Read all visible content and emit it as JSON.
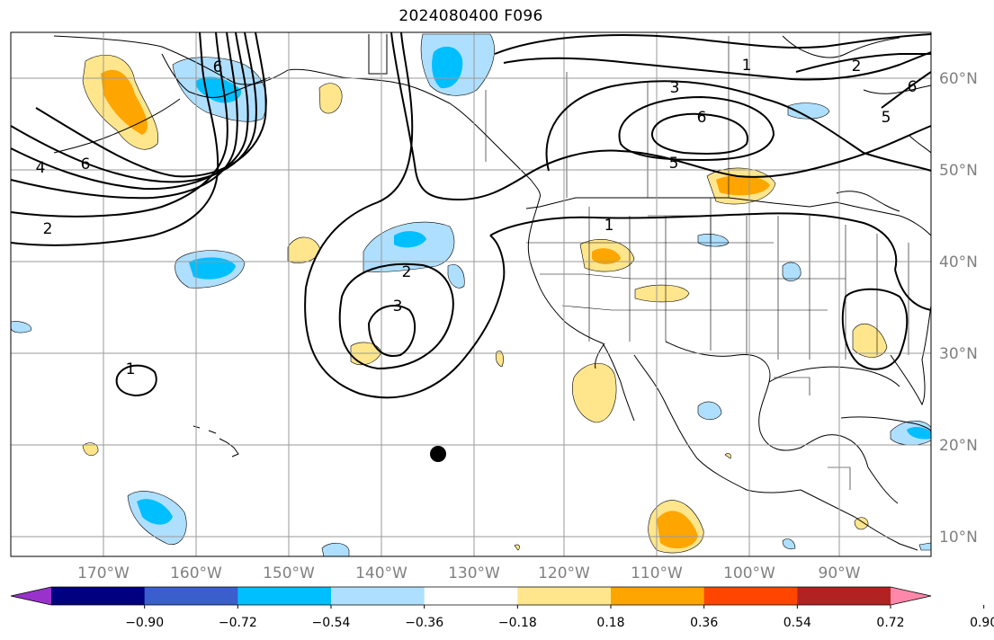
{
  "title": "2024080400 F096",
  "map": {
    "lon_labels": [
      "170°W",
      "160°W",
      "150°W",
      "140°W",
      "130°W",
      "120°W",
      "110°W",
      "100°W",
      "90°W"
    ],
    "lat_labels": [
      "60°N",
      "50°N",
      "40°N",
      "30°N",
      "20°N",
      "10°N"
    ],
    "contour_labels": [
      "1",
      "2",
      "3",
      "4",
      "5",
      "6"
    ],
    "marker": "black-dot",
    "grid": true
  },
  "colorbar": {
    "tick_labels": [
      "−0.90",
      "−0.72",
      "−0.54",
      "−0.36",
      "−0.18",
      "0.18",
      "0.36",
      "0.54",
      "0.72",
      "0.90"
    ],
    "colors": [
      "#9932cc",
      "#000080",
      "#3a5fcd",
      "#00bfff",
      "#afdfff",
      "#ffffff",
      "#ffe68c",
      "#ffa500",
      "#ff4500",
      "#b22222",
      "#ff88aa"
    ],
    "extend": "both"
  }
}
